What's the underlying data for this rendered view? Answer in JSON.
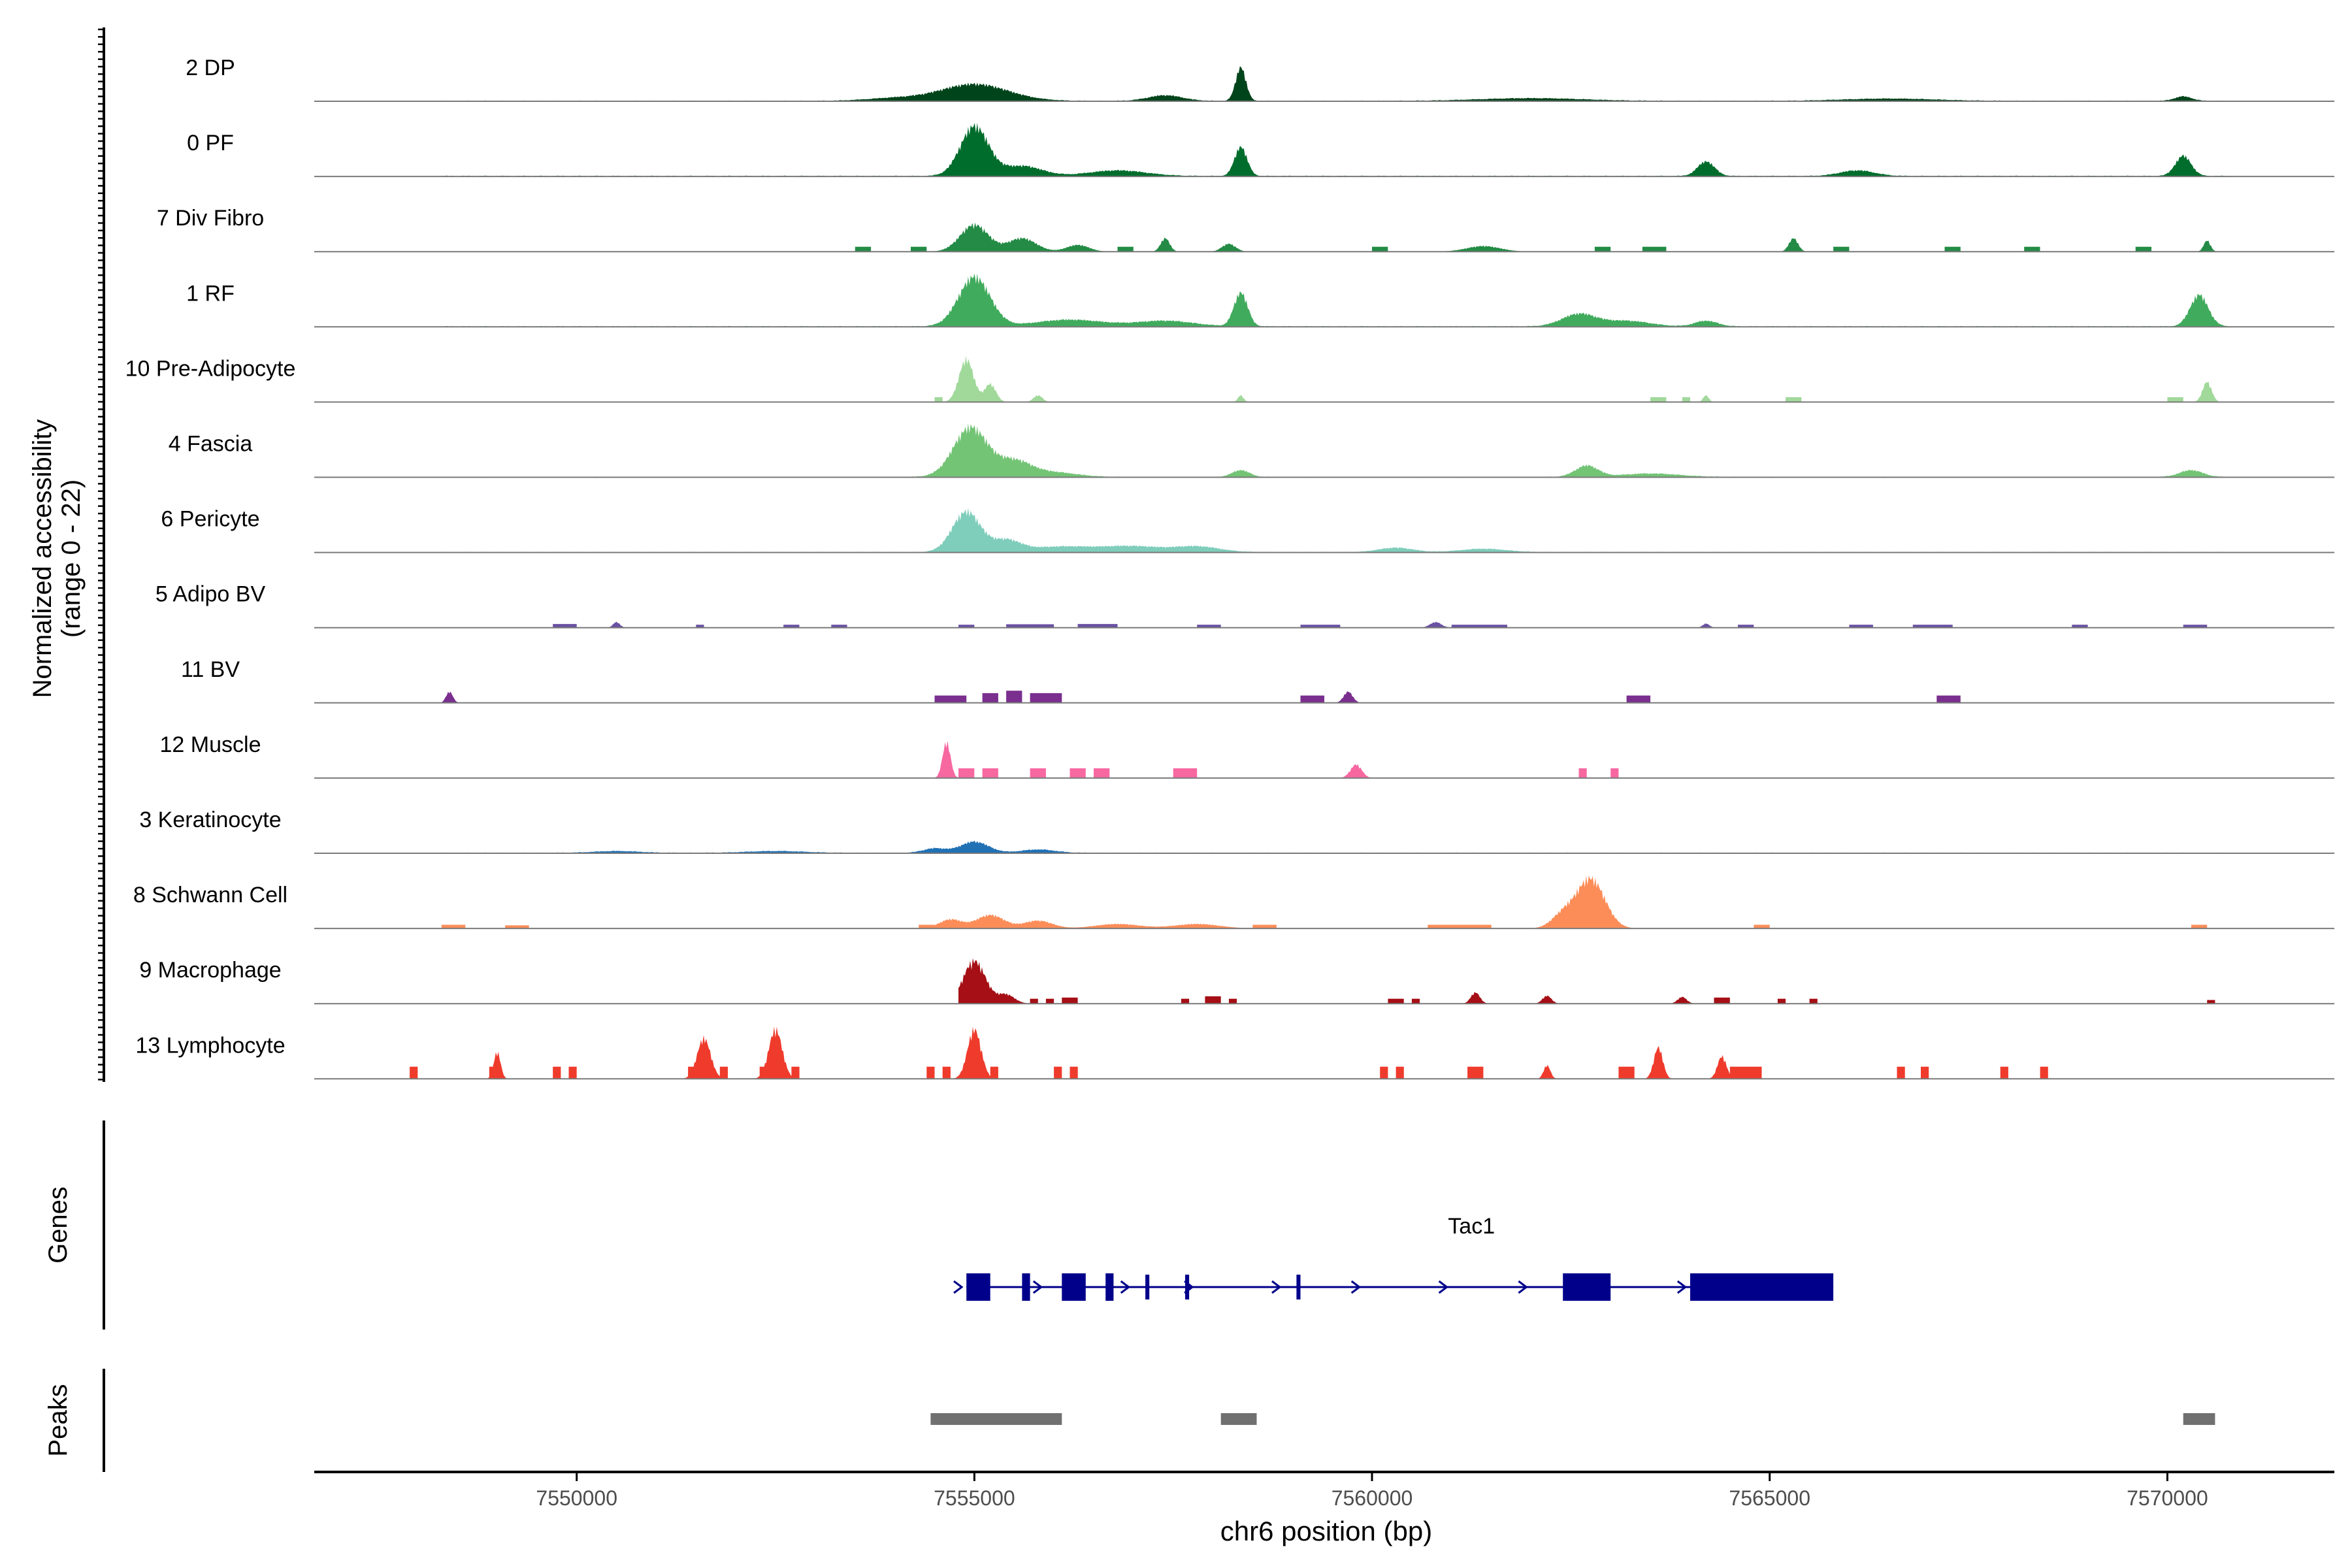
{
  "chart_data": {
    "type": "area",
    "title": "",
    "ylabel_line1": "Normalized accessibility",
    "ylabel_line2": "(range 0 - 22)",
    "xlabel": "chr6 position (bp)",
    "xlim": [
      7546700,
      7572100
    ],
    "ylim": [
      0,
      22
    ],
    "xticks": [
      7550000,
      7555000,
      7560000,
      7565000,
      7570000
    ],
    "xtick_labels": [
      "7550000",
      "7555000",
      "7560000",
      "7565000",
      "7570000"
    ],
    "genes_label": "Genes",
    "peaks_label": "Peaks",
    "tracks": [
      {
        "name": "2 DP",
        "color": "#00441b",
        "baseline": 0.3,
        "start": 7548300,
        "end": 7570800,
        "peaks": [
          [
            7555000,
            7.5,
            600
          ],
          [
            7558350,
            15,
            90
          ],
          [
            7557400,
            2.5,
            300
          ],
          [
            7554000,
            1.2,
            500
          ],
          [
            7562000,
            1.2,
            900
          ],
          [
            7566500,
            1.0,
            800
          ],
          [
            7570200,
            2.0,
            150
          ]
        ]
      },
      {
        "name": "0 PF",
        "color": "#006d2c",
        "baseline": 0.35,
        "start": 7548300,
        "end": 7570800,
        "peaks": [
          [
            7555000,
            22,
            250
          ],
          [
            7555600,
            4.5,
            350
          ],
          [
            7558350,
            13,
            110
          ],
          [
            7556800,
            2.5,
            500
          ],
          [
            7564200,
            6.5,
            150
          ],
          [
            7566100,
            2.5,
            300
          ],
          [
            7570200,
            9,
            140
          ]
        ]
      },
      {
        "name": "7 Div Fibro",
        "color": "#238b45",
        "baseline": 0,
        "start": 7553300,
        "end": 7570800,
        "peaks": [
          [
            7555000,
            12,
            250
          ],
          [
            7555600,
            6,
            250
          ],
          [
            7556300,
            3,
            200
          ],
          [
            7557400,
            6,
            80
          ],
          [
            7558200,
            3.5,
            120
          ],
          [
            7561400,
            2.5,
            300
          ],
          [
            7565300,
            6,
            80
          ],
          [
            7570500,
            5,
            60
          ]
        ],
        "blocks": [
          [
            7553500,
            7553700,
            2
          ],
          [
            7554200,
            7554400,
            2
          ],
          [
            7556800,
            7557000,
            2
          ],
          [
            7560000,
            7560200,
            2
          ],
          [
            7562800,
            7563000,
            2
          ],
          [
            7563400,
            7563700,
            2
          ],
          [
            7565800,
            7566000,
            2
          ],
          [
            7567200,
            7567400,
            2
          ],
          [
            7568200,
            7568400,
            2
          ],
          [
            7569600,
            7569800,
            2
          ]
        ]
      },
      {
        "name": "1 RF",
        "color": "#41ab5d",
        "baseline": 0.35,
        "start": 7548300,
        "end": 7570800,
        "peaks": [
          [
            7555000,
            22,
            280
          ],
          [
            7556200,
            3,
            600
          ],
          [
            7558350,
            15,
            120
          ],
          [
            7557400,
            2.5,
            500
          ],
          [
            7562600,
            5.5,
            300
          ],
          [
            7563200,
            2.5,
            400
          ],
          [
            7564200,
            2.5,
            200
          ],
          [
            7570400,
            14,
            160
          ]
        ]
      },
      {
        "name": "10 Pre-Adipocyte",
        "color": "#a1d99b",
        "baseline": 0,
        "start": 7554400,
        "end": 7570800,
        "peaks": [
          [
            7554900,
            19,
            130
          ],
          [
            7555200,
            8,
            100
          ],
          [
            7555800,
            3,
            80
          ],
          [
            7558350,
            3,
            50
          ],
          [
            7564200,
            3,
            50
          ],
          [
            7570500,
            9,
            80
          ]
        ],
        "blocks": [
          [
            7554500,
            7554600,
            2
          ],
          [
            7563500,
            7563700,
            2
          ],
          [
            7563900,
            7564000,
            2
          ],
          [
            7565200,
            7565400,
            2
          ],
          [
            7570000,
            7570200,
            2
          ]
        ]
      },
      {
        "name": "4 Fascia",
        "color": "#74c476",
        "baseline": 0.3,
        "start": 7548300,
        "end": 7570800,
        "peaks": [
          [
            7554950,
            22,
            300
          ],
          [
            7555500,
            7,
            300
          ],
          [
            7556000,
            2,
            400
          ],
          [
            7558350,
            3,
            150
          ],
          [
            7562700,
            5,
            200
          ],
          [
            7563500,
            1.5,
            500
          ],
          [
            7570300,
            3,
            200
          ]
        ]
      },
      {
        "name": "6 Pericyte",
        "color": "#7fcdbb",
        "baseline": 0.25,
        "start": 7548300,
        "end": 7570800,
        "peaks": [
          [
            7554900,
            18,
            250
          ],
          [
            7555400,
            5,
            250
          ],
          [
            7556100,
            2.5,
            600
          ],
          [
            7557000,
            2.5,
            500
          ],
          [
            7557800,
            2.5,
            400
          ],
          [
            7560300,
            2,
            300
          ],
          [
            7561400,
            1.5,
            400
          ]
        ]
      },
      {
        "name": "5 Adipo BV",
        "color": "#6a51a3",
        "baseline": 0,
        "start": 7548300,
        "end": 7570800,
        "peaks": [
          [
            7550500,
            2.5,
            60
          ],
          [
            7560800,
            2.5,
            100
          ],
          [
            7564200,
            1.8,
            60
          ]
        ],
        "blocks": [
          [
            7549700,
            7550000,
            1.5
          ],
          [
            7551500,
            7551600,
            1.2
          ],
          [
            7552600,
            7552800,
            1.2
          ],
          [
            7553200,
            7553400,
            1.2
          ],
          [
            7554800,
            7555000,
            1.2
          ],
          [
            7555400,
            7556000,
            1.4
          ],
          [
            7556300,
            7556800,
            1.5
          ],
          [
            7557800,
            7558100,
            1.2
          ],
          [
            7559100,
            7559600,
            1.2
          ],
          [
            7561000,
            7561700,
            1.2
          ],
          [
            7564600,
            7564800,
            1.2
          ],
          [
            7566000,
            7566300,
            1.2
          ],
          [
            7566800,
            7567300,
            1.2
          ],
          [
            7568800,
            7569000,
            1.2
          ],
          [
            7570200,
            7570500,
            1.2
          ]
        ]
      },
      {
        "name": "11 BV",
        "color": "#7a2f8f",
        "baseline": 0,
        "start": 7548300,
        "end": 7567600,
        "peaks": [
          [
            7548400,
            5,
            60
          ],
          [
            7559700,
            5,
            80
          ]
        ],
        "blocks": [
          [
            7554500,
            7554900,
            3
          ],
          [
            7555100,
            7555300,
            4
          ],
          [
            7555400,
            7555600,
            5
          ],
          [
            7555700,
            7556100,
            4
          ],
          [
            7559100,
            7559400,
            3
          ],
          [
            7563200,
            7563500,
            3
          ],
          [
            7567100,
            7567400,
            3
          ]
        ]
      },
      {
        "name": "12 Muscle",
        "color": "#f768a1",
        "baseline": 0,
        "start": 7554500,
        "end": 7563300,
        "peaks": [
          [
            7554650,
            16,
            70
          ],
          [
            7559800,
            6,
            100
          ]
        ],
        "blocks": [
          [
            7554800,
            7555000,
            4
          ],
          [
            7555100,
            7555300,
            4
          ],
          [
            7555700,
            7555900,
            4
          ],
          [
            7556200,
            7556400,
            4
          ],
          [
            7556500,
            7556700,
            4
          ],
          [
            7557500,
            7557800,
            4
          ],
          [
            7562600,
            7562700,
            4
          ],
          [
            7563000,
            7563100,
            4
          ]
        ]
      },
      {
        "name": "3 Keratinocyte",
        "color": "#2171b5",
        "baseline": 0.3,
        "start": 7548300,
        "end": 7570800,
        "peaks": [
          [
            7555000,
            5,
            250
          ],
          [
            7554500,
            2,
            200
          ],
          [
            7555800,
            1.5,
            300
          ],
          [
            7552500,
            0.8,
            500
          ],
          [
            7550500,
            0.8,
            400
          ]
        ]
      },
      {
        "name": "8 Schwann Cell",
        "color": "#fc8d59",
        "baseline": 0,
        "start": 7548300,
        "end": 7570800,
        "peaks": [
          [
            7562750,
            22,
            250
          ],
          [
            7562400,
            6,
            200
          ],
          [
            7554700,
            4,
            200
          ],
          [
            7555200,
            6,
            250
          ],
          [
            7555800,
            3.5,
            250
          ],
          [
            7556800,
            2,
            400
          ],
          [
            7557800,
            2,
            400
          ]
        ],
        "blocks": [
          [
            7548300,
            7548600,
            1.5
          ],
          [
            7549100,
            7549400,
            1.3
          ],
          [
            7554300,
            7554500,
            1.5
          ],
          [
            7558500,
            7558800,
            1.5
          ],
          [
            7560700,
            7561500,
            1.5
          ],
          [
            7564800,
            7565000,
            1.5
          ],
          [
            7570300,
            7570500,
            1.5
          ]
        ]
      },
      {
        "name": "9 Macrophage",
        "color": "#a50f15",
        "baseline": 0,
        "start": 7554800,
        "end": 7570800,
        "peaks": [
          [
            7555000,
            19,
            200
          ],
          [
            7555400,
            4,
            150
          ],
          [
            7561300,
            5,
            80
          ],
          [
            7562200,
            3.5,
            80
          ],
          [
            7563900,
            3,
            80
          ]
        ],
        "blocks": [
          [
            7555700,
            7555800,
            2
          ],
          [
            7555900,
            7556000,
            2
          ],
          [
            7556100,
            7556300,
            2.5
          ],
          [
            7557600,
            7557700,
            2
          ],
          [
            7557900,
            7558100,
            3
          ],
          [
            7558200,
            7558300,
            2
          ],
          [
            7560200,
            7560400,
            2
          ],
          [
            7560500,
            7560600,
            2
          ],
          [
            7564300,
            7564500,
            2.5
          ],
          [
            7565100,
            7565200,
            2
          ],
          [
            7565500,
            7565600,
            2
          ],
          [
            7570500,
            7570600,
            1.5
          ]
        ]
      },
      {
        "name": "13 Lymphocyte",
        "color": "#ef3b2c",
        "baseline": 0,
        "start": 7547800,
        "end": 7568500,
        "peaks": [
          [
            7549000,
            12,
            60
          ],
          [
            7551600,
            18,
            120
          ],
          [
            7552500,
            22,
            120
          ],
          [
            7555000,
            22,
            120
          ],
          [
            7561300,
            5,
            60
          ],
          [
            7562200,
            6,
            60
          ],
          [
            7563600,
            14,
            80
          ],
          [
            7564400,
            10,
            80
          ]
        ],
        "blocks": [
          [
            7547900,
            7548000,
            5
          ],
          [
            7548900,
            7549000,
            5
          ],
          [
            7549700,
            7549800,
            5
          ],
          [
            7549900,
            7550000,
            5
          ],
          [
            7551400,
            7551700,
            5
          ],
          [
            7551800,
            7551900,
            5
          ],
          [
            7552300,
            7552500,
            5
          ],
          [
            7552700,
            7552800,
            5
          ],
          [
            7554400,
            7554500,
            5
          ],
          [
            7554600,
            7554700,
            5
          ],
          [
            7555200,
            7555300,
            5
          ],
          [
            7556000,
            7556100,
            5
          ],
          [
            7556200,
            7556300,
            5
          ],
          [
            7560100,
            7560200,
            5
          ],
          [
            7560300,
            7560400,
            5
          ],
          [
            7561200,
            7561400,
            5
          ],
          [
            7563100,
            7563300,
            5
          ],
          [
            7564500,
            7564900,
            5
          ],
          [
            7566600,
            7566700,
            5
          ],
          [
            7566900,
            7567000,
            5
          ],
          [
            7567900,
            7568000,
            5
          ],
          [
            7568400,
            7568500,
            5
          ]
        ]
      }
    ],
    "gene": {
      "name": "Tac1",
      "color": "#00008b",
      "start": 7554900,
      "end": 7565800,
      "exons": [
        [
          7554900,
          7555200
        ],
        [
          7555600,
          7555700
        ],
        [
          7556100,
          7556400
        ],
        [
          7556650,
          7556750
        ],
        [
          7557150,
          7557200
        ],
        [
          7557650,
          7557700
        ],
        [
          7559050,
          7559100
        ],
        [
          7562400,
          7563000
        ],
        [
          7564000,
          7565800
        ]
      ],
      "arrows": [
        7554800,
        7555800,
        7556900,
        7557700,
        7558800,
        7559800,
        7560900,
        7561900,
        7563900
      ]
    },
    "peaks_track": {
      "color": "#707070",
      "regions": [
        [
          7554450,
          7556100
        ],
        [
          7558100,
          7558550
        ],
        [
          7570200,
          7570600
        ]
      ]
    }
  }
}
